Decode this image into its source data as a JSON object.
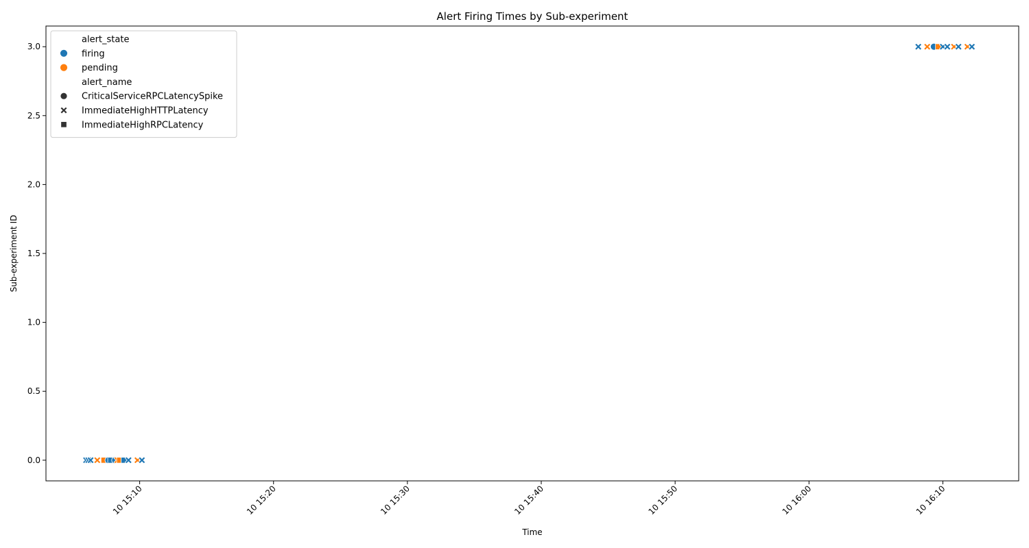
{
  "chart_data": {
    "type": "scatter",
    "title": "Alert Firing Times by Sub-experiment",
    "xlabel": "Time",
    "ylabel": "Sub-experiment ID",
    "xlim": [
      "2024-01-10 15:03:00",
      "2024-01-10 16:15:40"
    ],
    "ylim": [
      -0.15,
      3.15
    ],
    "x_ticks": [
      {
        "value": "2024-01-10 15:10:00",
        "label": "10 15:10"
      },
      {
        "value": "2024-01-10 15:20:00",
        "label": "10 15:20"
      },
      {
        "value": "2024-01-10 15:30:00",
        "label": "10 15:30"
      },
      {
        "value": "2024-01-10 15:40:00",
        "label": "10 15:40"
      },
      {
        "value": "2024-01-10 15:50:00",
        "label": "10 15:50"
      },
      {
        "value": "2024-01-10 16:00:00",
        "label": "10 16:00"
      },
      {
        "value": "2024-01-10 16:10:00",
        "label": "10 16:10"
      }
    ],
    "y_ticks": [
      {
        "value": 0.0,
        "label": "0.0"
      },
      {
        "value": 0.5,
        "label": "0.5"
      },
      {
        "value": 1.0,
        "label": "1.0"
      },
      {
        "value": 1.5,
        "label": "1.5"
      },
      {
        "value": 2.0,
        "label": "2.0"
      },
      {
        "value": 2.5,
        "label": "2.5"
      },
      {
        "value": 3.0,
        "label": "3.0"
      }
    ],
    "grid": false,
    "legend": {
      "placement": "top-left",
      "hue_title": "alert_state",
      "hue_entries": [
        {
          "label": "firing",
          "color": "#1f77b4"
        },
        {
          "label": "pending",
          "color": "#ff7f0e"
        }
      ],
      "style_title": "alert_name",
      "style_entries": [
        {
          "label": "CriticalServiceRPCLatencySpike",
          "marker": "circle"
        },
        {
          "label": "ImmediateHighHTTPLatency",
          "marker": "x"
        },
        {
          "label": "ImmediateHighRPCLatency",
          "marker": "square"
        }
      ]
    },
    "points": [
      {
        "time": "2024-01-10 15:06:00",
        "y": 0,
        "state": "firing",
        "alert": "ImmediateHighHTTPLatency"
      },
      {
        "time": "2024-01-10 15:06:10",
        "y": 0,
        "state": "firing",
        "alert": "ImmediateHighHTTPLatency"
      },
      {
        "time": "2024-01-10 15:06:20",
        "y": 0,
        "state": "firing",
        "alert": "ImmediateHighHTTPLatency"
      },
      {
        "time": "2024-01-10 15:06:50",
        "y": 0,
        "state": "pending",
        "alert": "ImmediateHighHTTPLatency"
      },
      {
        "time": "2024-01-10 15:07:20",
        "y": 0,
        "state": "pending",
        "alert": "ImmediateHighRPCLatency"
      },
      {
        "time": "2024-01-10 15:07:40",
        "y": 0,
        "state": "firing",
        "alert": "CriticalServiceRPCLatencySpike"
      },
      {
        "time": "2024-01-10 15:07:50",
        "y": 0,
        "state": "firing",
        "alert": "ImmediateHighRPCLatency"
      },
      {
        "time": "2024-01-10 15:08:10",
        "y": 0,
        "state": "firing",
        "alert": "CriticalServiceRPCLatencySpike"
      },
      {
        "time": "2024-01-10 15:08:20",
        "y": 0,
        "state": "pending",
        "alert": "ImmediateHighHTTPLatency"
      },
      {
        "time": "2024-01-10 15:08:30",
        "y": 0,
        "state": "pending",
        "alert": "ImmediateHighRPCLatency"
      },
      {
        "time": "2024-01-10 15:08:50",
        "y": 0,
        "state": "firing",
        "alert": "ImmediateHighRPCLatency"
      },
      {
        "time": "2024-01-10 15:09:10",
        "y": 0,
        "state": "firing",
        "alert": "ImmediateHighHTTPLatency"
      },
      {
        "time": "2024-01-10 15:09:50",
        "y": 0,
        "state": "pending",
        "alert": "ImmediateHighHTTPLatency"
      },
      {
        "time": "2024-01-10 15:10:10",
        "y": 0,
        "state": "firing",
        "alert": "ImmediateHighHTTPLatency"
      },
      {
        "time": "2024-01-10 16:08:10",
        "y": 3,
        "state": "firing",
        "alert": "ImmediateHighHTTPLatency"
      },
      {
        "time": "2024-01-10 16:08:50",
        "y": 3,
        "state": "pending",
        "alert": "ImmediateHighHTTPLatency"
      },
      {
        "time": "2024-01-10 16:09:20",
        "y": 3,
        "state": "firing",
        "alert": "CriticalServiceRPCLatencySpike"
      },
      {
        "time": "2024-01-10 16:09:40",
        "y": 3,
        "state": "pending",
        "alert": "ImmediateHighRPCLatency"
      },
      {
        "time": "2024-01-10 16:10:00",
        "y": 3,
        "state": "firing",
        "alert": "ImmediateHighHTTPLatency"
      },
      {
        "time": "2024-01-10 16:10:20",
        "y": 3,
        "state": "firing",
        "alert": "ImmediateHighHTTPLatency"
      },
      {
        "time": "2024-01-10 16:10:50",
        "y": 3,
        "state": "pending",
        "alert": "ImmediateHighHTTPLatency"
      },
      {
        "time": "2024-01-10 16:11:10",
        "y": 3,
        "state": "firing",
        "alert": "ImmediateHighHTTPLatency"
      },
      {
        "time": "2024-01-10 16:11:50",
        "y": 3,
        "state": "pending",
        "alert": "ImmediateHighHTTPLatency"
      },
      {
        "time": "2024-01-10 16:12:10",
        "y": 3,
        "state": "firing",
        "alert": "ImmediateHighHTTPLatency"
      }
    ]
  }
}
